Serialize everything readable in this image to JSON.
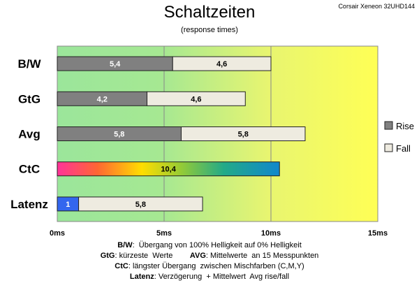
{
  "model": "Corsair Xeneon 32UHD144",
  "colors": {
    "rise": "#808080",
    "fall": "#eeebe0",
    "latency": "#3366ee",
    "bg_green": "#9be69b",
    "bg_yellow": "#ffff55"
  },
  "chart_data": {
    "type": "bar",
    "orientation": "horizontal",
    "stacked": true,
    "title": "Schaltzeiten",
    "subtitle": "(response times)",
    "categories": [
      "B/W",
      "GtG",
      "Avg",
      "CtC",
      "Latenz"
    ],
    "series": [
      {
        "name": "Rise",
        "values": [
          5.4,
          4.2,
          5.8,
          10.4,
          1
        ],
        "labels": [
          "5,4",
          "4,2",
          "5,8",
          "10,4",
          "1"
        ]
      },
      {
        "name": "Fall",
        "values": [
          4.6,
          4.6,
          5.8,
          null,
          5.8
        ],
        "labels": [
          "4,6",
          "4,6",
          "5,8",
          "",
          "5,8"
        ]
      }
    ],
    "xlim": [
      0,
      15
    ],
    "xticks": [
      0,
      5,
      10,
      15
    ],
    "xtick_labels": [
      "0ms",
      "5ms",
      "10ms",
      "15ms"
    ],
    "grid": true,
    "legend_position": "right"
  },
  "notes": [
    {
      "bold": "B/W",
      "text": ":  Übergang von 100% Helligkeit auf 0% Helligkeit"
    },
    {
      "bold": "GtG",
      "text": ": kürzeste  Werte        ",
      "bold2": "AVG",
      "text2": ": Mittelwerte  an 15 Messpunkten"
    },
    {
      "bold": "CtC",
      "text": ": längster Übergang  zwischen Mischfarben (C,M,Y)"
    },
    {
      "bold": "Latenz",
      "text": ": Verzögerung  + Mittelwert  Avg rise/fall"
    }
  ]
}
